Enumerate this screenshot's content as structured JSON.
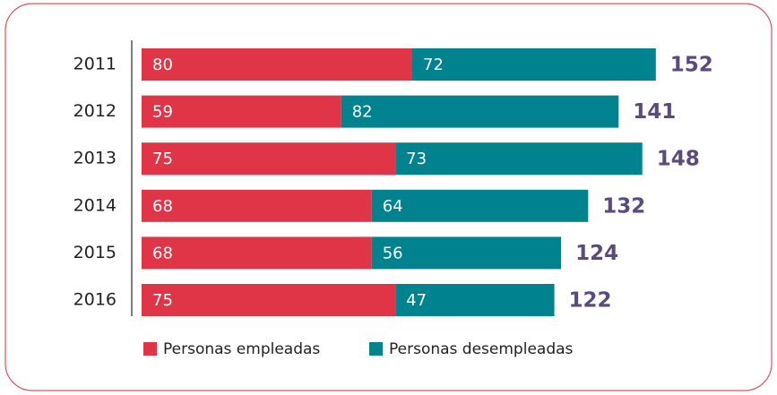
{
  "chart_data": {
    "type": "stacked-bar-horizontal",
    "categories": [
      "2011",
      "2012",
      "2013",
      "2014",
      "2015",
      "2016"
    ],
    "series": [
      {
        "name": "Personas empleadas",
        "color": "#e03546",
        "values": [
          80,
          59,
          75,
          68,
          68,
          75
        ]
      },
      {
        "name": "Personas desempleadas",
        "color": "#00828f",
        "values": [
          72,
          82,
          73,
          64,
          56,
          47
        ]
      }
    ],
    "totals": [
      152,
      141,
      148,
      132,
      124,
      122
    ],
    "totals_color": "#5b4a7c"
  }
}
